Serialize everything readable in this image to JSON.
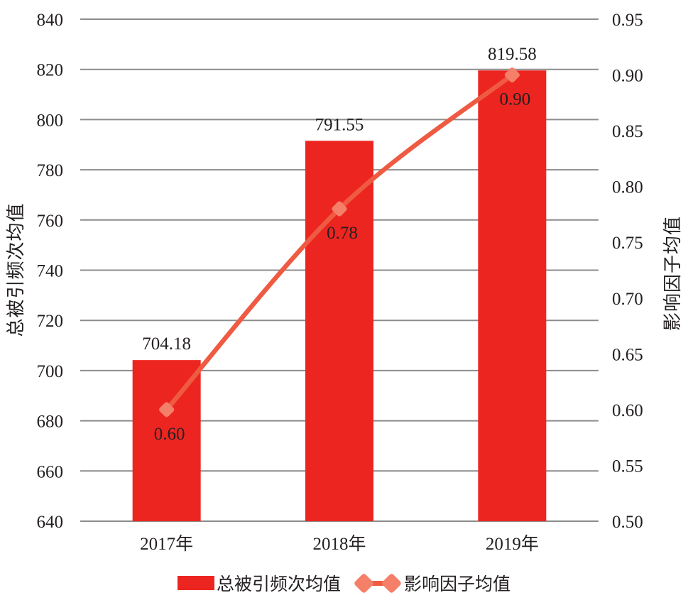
{
  "chart_data": {
    "type": "bar+line combo",
    "categories": [
      "2017年",
      "2018年",
      "2019年"
    ],
    "series": [
      {
        "name": "总被引频次均值",
        "type": "bar",
        "axis": "left",
        "values": [
          704.18,
          791.55,
          819.58
        ],
        "labels": [
          "704.18",
          "791.55",
          "819.58"
        ],
        "color": "#ED2521"
      },
      {
        "name": "影响因子均值",
        "type": "line",
        "axis": "right",
        "values": [
          0.6,
          0.78,
          0.9
        ],
        "labels": [
          "0.60",
          "0.78",
          "0.90"
        ],
        "color": "#EF5B42",
        "marker_color": "#F4806A",
        "marker_shape": "diamond"
      }
    ],
    "left_axis": {
      "title": "总被引频次均值",
      "min": 640,
      "max": 840,
      "step": 20,
      "ticks": [
        "840",
        "820",
        "800",
        "780",
        "760",
        "740",
        "720",
        "700",
        "680",
        "660",
        "640"
      ]
    },
    "right_axis": {
      "title": "影响因子均值",
      "min": 0.5,
      "max": 0.95,
      "step": 0.05,
      "ticks": [
        "0.95",
        "0.90",
        "0.85",
        "0.80",
        "0.75",
        "0.70",
        "0.65",
        "0.60",
        "0.55",
        "0.50"
      ]
    },
    "grid": true,
    "legend_position": "bottom",
    "colors": {
      "grid": "#8C8C8C",
      "text": "#231F20",
      "background": "#FFFFFF"
    }
  }
}
